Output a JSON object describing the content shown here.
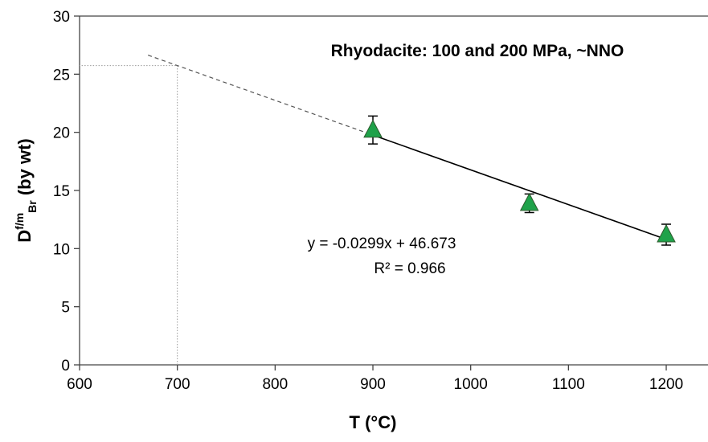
{
  "chart_data": {
    "type": "scatter",
    "title": "Rhyodacite: 100 and 200 MPa, ~NNO",
    "x_label": "T (°C)",
    "y_label": {
      "main": "D",
      "sup": "f/m",
      "sub": "Br",
      "rest": " (by wt)"
    },
    "x": [
      900,
      1060,
      1200
    ],
    "series": [
      {
        "color": "#1fa24a",
        "values": [
          20.2,
          13.9,
          11.2
        ],
        "errors": [
          1.2,
          0.8,
          0.9
        ]
      }
    ],
    "trendline": {
      "slope": -0.0299,
      "intercept": 46.673,
      "label": "y = -0.0299x + 46.673",
      "r2_label": "R² = 0.966",
      "extrapolation_x": [
        670,
        900
      ]
    },
    "guide_x": 700,
    "xlim": [
      600,
      1240
    ],
    "xticks": [
      600,
      700,
      800,
      900,
      1000,
      1100,
      1200
    ],
    "ylim": [
      0,
      30
    ],
    "yticks": [
      0,
      5,
      10,
      15,
      20,
      25,
      30
    ]
  }
}
